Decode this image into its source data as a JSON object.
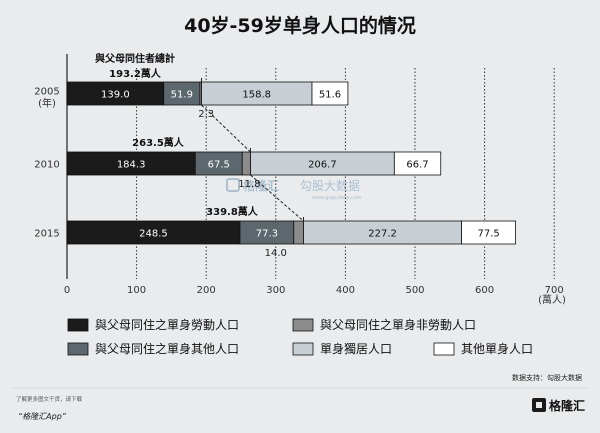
{
  "colors": {
    "work": "#1b1b1b",
    "nonwork": "#8c8c8c",
    "other": "#5c676e",
    "alone": "#c8cfd4",
    "single_other": "#ffffff",
    "background": "#e9ebed",
    "watermark": "#9db6c9"
  },
  "chart_data": {
    "type": "bar",
    "orientation": "horizontal",
    "stacked": true,
    "title": "40岁-59岁单身人口的情况",
    "xlabel": "(萬人)",
    "xlim": [
      0,
      700
    ],
    "xticks": [
      "0",
      "100",
      "200",
      "300",
      "400",
      "500",
      "600",
      "700"
    ],
    "categories": [
      "2005",
      "2010",
      "2015"
    ],
    "category_sublabels": [
      "(年)",
      "",
      ""
    ],
    "series": [
      {
        "name": "與父母同住之單身勞動人口",
        "values": [
          139.0,
          184.3,
          248.5
        ],
        "labels": [
          "139.0",
          "184.3",
          "248.5"
        ]
      },
      {
        "name": "與父母同住之單身其他人口",
        "values": [
          51.9,
          67.5,
          77.3
        ],
        "labels": [
          "51.9",
          "67.5",
          "77.3"
        ]
      },
      {
        "name": "與父母同住之單身非勞動人口",
        "values": [
          2.3,
          11.8,
          14.0
        ],
        "labels": [
          "2.3",
          "11.8",
          "14.0"
        ]
      },
      {
        "name": "單身獨居人口",
        "values": [
          158.8,
          206.7,
          227.2
        ],
        "labels": [
          "158.8",
          "206.7",
          "227.2"
        ]
      },
      {
        "name": "其他單身人口",
        "values": [
          51.6,
          66.7,
          77.5
        ],
        "labels": [
          "51.6",
          "66.7",
          "77.5"
        ]
      }
    ],
    "totals_label_header": "與父母同住者總計",
    "totals_labels": [
      "193.2萬人",
      "263.5萬人",
      "339.8萬人"
    ],
    "legend_order": [
      0,
      2,
      1,
      3,
      4
    ],
    "legend_position": "bottom",
    "grid": "dotted vertical"
  },
  "source": "数据支持：勾股大数据",
  "footer": {
    "small_text": "了解更多图文干货，请下载",
    "app_name": "“格隆汇App”"
  },
  "watermark": {
    "brand": "格隆汇",
    "partner": "勾股大数据",
    "url": "www.gogudata.com"
  },
  "logo": {
    "text": "格隆汇"
  }
}
